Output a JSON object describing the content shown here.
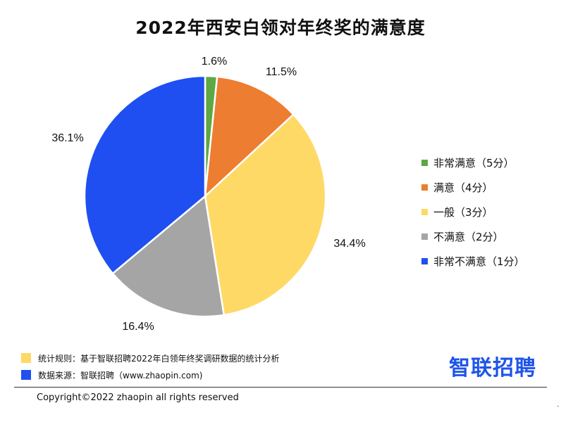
{
  "chart_data": {
    "type": "pie",
    "title": "2022年西安白领对年终奖的满意度",
    "categories": [
      "非常满意（5分）",
      "满意（4分）",
      "一般（3分）",
      "不满意（2分）",
      "非常不满意（1分）"
    ],
    "values": [
      1.6,
      11.5,
      34.4,
      16.4,
      36.1
    ],
    "value_labels": [
      "1.6%",
      "11.5%",
      "34.4%",
      "16.4%",
      "36.1%"
    ],
    "colors": [
      "#5ea843",
      "#ed7d31",
      "#ffd966",
      "#a5a5a5",
      "#1f4ff0"
    ],
    "start_angle_deg": 0,
    "direction": "clockwise",
    "legend_position": "right"
  },
  "notes": [
    {
      "text": "统计规则：基于智联招聘2022年白领年终奖调研数据的统计分析",
      "color": "#ffd966"
    },
    {
      "text": "数据来源：智联招聘（www.zhaopin.com)",
      "color": "#1f4ff0"
    }
  ],
  "brand": {
    "logo_text": "智联招聘",
    "color": "#1f55e8"
  },
  "footer": {
    "copyright": "Copyright©2022 zhaopin all rights reserved"
  }
}
